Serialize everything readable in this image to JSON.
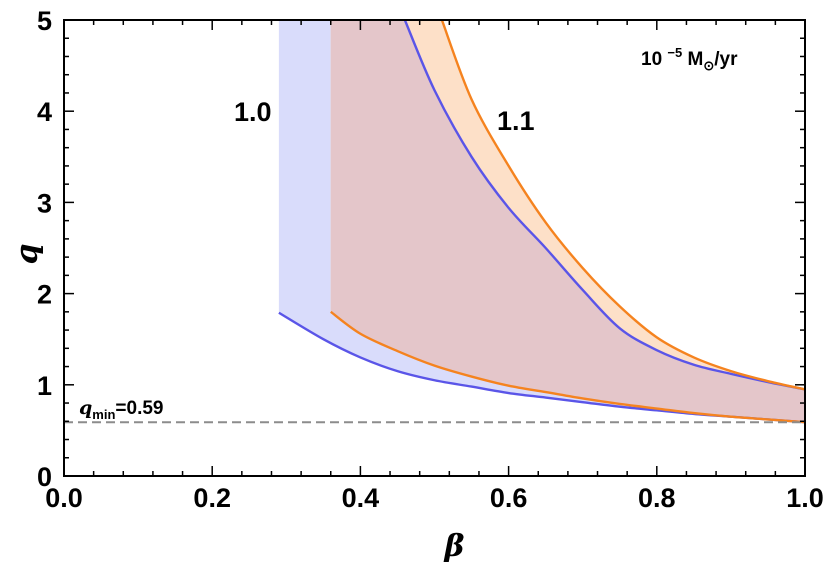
{
  "chart_data": {
    "type": "area",
    "title": "",
    "xlabel": "β",
    "ylabel": "q",
    "xlim": [
      0,
      1
    ],
    "ylim": [
      0,
      5
    ],
    "xticks": [
      0.0,
      0.2,
      0.4,
      0.6,
      0.8,
      1.0
    ],
    "xtick_labels": [
      "0.0",
      "0.2",
      "0.4",
      "0.6",
      "0.8",
      "1.0"
    ],
    "yticks": [
      0,
      1,
      2,
      3,
      4,
      5
    ],
    "ytick_labels": [
      "0",
      "1",
      "2",
      "3",
      "4",
      "5"
    ],
    "grid": false,
    "annotation": {
      "base": "10",
      "exponent": "−5",
      "unit_main": "M",
      "unit_sub": "⊙",
      "unit_tail": "/yr"
    },
    "reference_line": {
      "y": 0.59,
      "style": "dashed",
      "color": "#8c8c8c",
      "label_var": "q",
      "label_sub": "min",
      "label_value": "=0.59"
    },
    "series": [
      {
        "name": "1.0",
        "color": "#5a55e8",
        "fill": "#d9dcfb",
        "beta_min": 0.29,
        "upper": [
          [
            0.29,
            5.0
          ],
          [
            0.46,
            5.0
          ],
          [
            0.5,
            4.23
          ],
          [
            0.55,
            3.5
          ],
          [
            0.6,
            2.94
          ],
          [
            0.65,
            2.5
          ],
          [
            0.7,
            2.04
          ],
          [
            0.75,
            1.62
          ],
          [
            0.8,
            1.38
          ],
          [
            0.85,
            1.22
          ],
          [
            0.9,
            1.12
          ],
          [
            0.95,
            1.03
          ],
          [
            1.0,
            0.95
          ]
        ],
        "lower": [
          [
            0.29,
            1.79
          ],
          [
            0.35,
            1.5
          ],
          [
            0.4,
            1.3
          ],
          [
            0.45,
            1.15
          ],
          [
            0.5,
            1.05
          ],
          [
            0.55,
            0.98
          ],
          [
            0.6,
            0.91
          ],
          [
            0.65,
            0.86
          ],
          [
            0.7,
            0.81
          ],
          [
            0.75,
            0.76
          ],
          [
            0.8,
            0.72
          ],
          [
            0.85,
            0.68
          ],
          [
            0.9,
            0.65
          ],
          [
            0.95,
            0.62
          ],
          [
            1.0,
            0.59
          ]
        ]
      },
      {
        "name": "1.1",
        "color": "#f5831f",
        "fill": "#fde0c8",
        "beta_min": 0.36,
        "upper": [
          [
            0.36,
            5.0
          ],
          [
            0.51,
            5.0
          ],
          [
            0.55,
            4.13
          ],
          [
            0.6,
            3.4
          ],
          [
            0.65,
            2.78
          ],
          [
            0.7,
            2.28
          ],
          [
            0.75,
            1.86
          ],
          [
            0.8,
            1.52
          ],
          [
            0.85,
            1.3
          ],
          [
            0.9,
            1.15
          ],
          [
            0.95,
            1.04
          ],
          [
            1.0,
            0.95
          ]
        ],
        "lower": [
          [
            0.36,
            1.8
          ],
          [
            0.4,
            1.56
          ],
          [
            0.45,
            1.37
          ],
          [
            0.5,
            1.21
          ],
          [
            0.55,
            1.09
          ],
          [
            0.6,
            0.99
          ],
          [
            0.65,
            0.92
          ],
          [
            0.7,
            0.85
          ],
          [
            0.75,
            0.79
          ],
          [
            0.8,
            0.74
          ],
          [
            0.85,
            0.69
          ],
          [
            0.9,
            0.65
          ],
          [
            0.95,
            0.62
          ],
          [
            1.0,
            0.59
          ]
        ]
      }
    ],
    "overlap_fill": "#e4c6ca"
  }
}
